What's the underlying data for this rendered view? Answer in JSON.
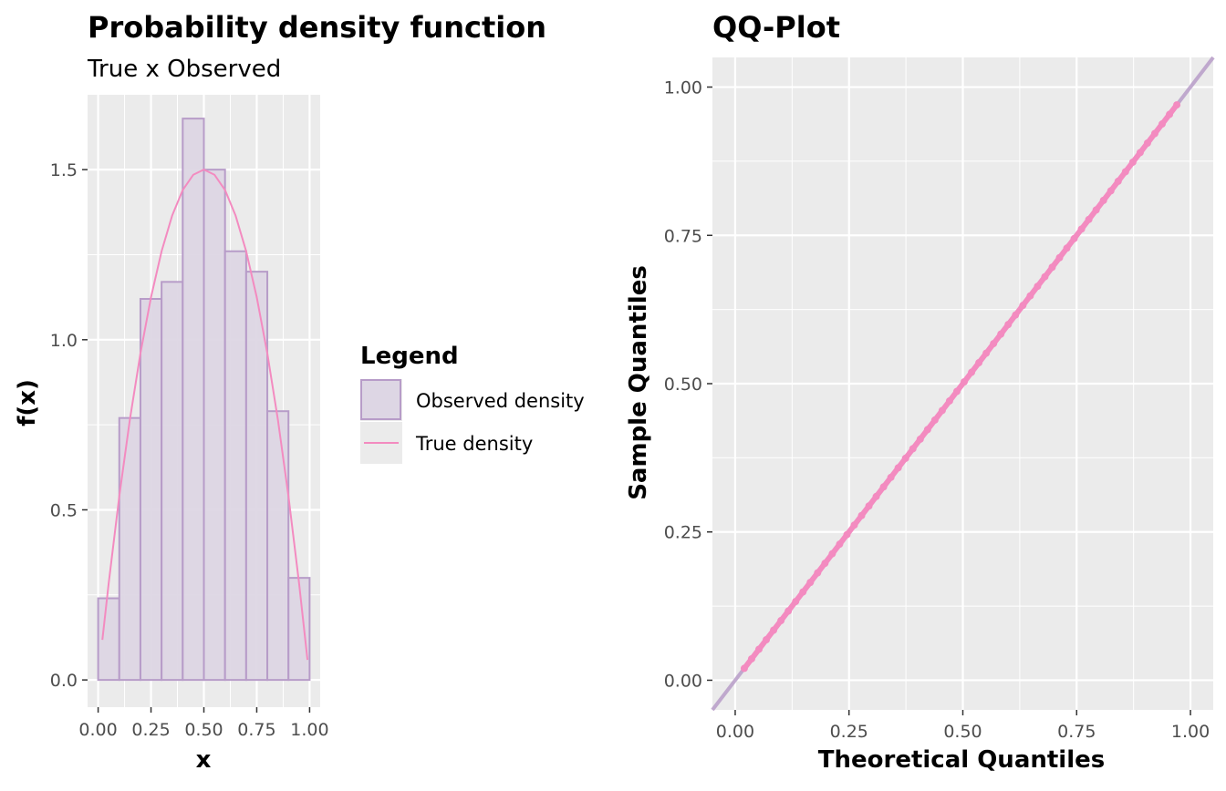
{
  "colors": {
    "panel_bg": "#EBEBEB",
    "grid": "#FFFFFF",
    "bar_fill": "#DDD6E4",
    "bar_stroke": "#B79CC8",
    "true_density": "#F38BC0",
    "qq_points": "#F38BC0",
    "qq_line": "#B79CC8"
  },
  "legend": {
    "title": "Legend",
    "items": [
      {
        "label": "Observed density",
        "icon": "filled-rect"
      },
      {
        "label": "True density",
        "icon": "line"
      }
    ]
  },
  "chart_data": [
    {
      "type": "bar",
      "title": "Probability density function",
      "subtitle": "True x Observed",
      "xlabel": "x",
      "ylabel": "f(x)",
      "xlim": [
        -0.05,
        1.05
      ],
      "ylim": [
        -0.08,
        1.72
      ],
      "xticks": [
        "0.00",
        "0.25",
        "0.50",
        "0.75",
        "1.00"
      ],
      "xtick_values": [
        0,
        0.25,
        0.5,
        0.75,
        1.0
      ],
      "yticks": [
        "0.0",
        "0.5",
        "1.0",
        "1.5"
      ],
      "ytick_values": [
        0,
        0.5,
        1.0,
        1.5
      ],
      "grid": true,
      "legend_position": "right",
      "bins": [
        {
          "x0": 0.0,
          "x1": 0.1,
          "density": 0.24
        },
        {
          "x0": 0.1,
          "x1": 0.2,
          "density": 0.77
        },
        {
          "x0": 0.2,
          "x1": 0.3,
          "density": 1.12
        },
        {
          "x0": 0.3,
          "x1": 0.4,
          "density": 1.17
        },
        {
          "x0": 0.4,
          "x1": 0.5,
          "density": 1.65
        },
        {
          "x0": 0.5,
          "x1": 0.6,
          "density": 1.5
        },
        {
          "x0": 0.6,
          "x1": 0.7,
          "density": 1.26
        },
        {
          "x0": 0.7,
          "x1": 0.8,
          "density": 1.2
        },
        {
          "x0": 0.8,
          "x1": 0.9,
          "density": 0.79
        },
        {
          "x0": 0.9,
          "x1": 1.0,
          "density": 0.3
        }
      ],
      "series": [
        {
          "type": "line",
          "x": [
            0.02,
            0.05,
            0.1,
            0.15,
            0.2,
            0.25,
            0.3,
            0.35,
            0.4,
            0.45,
            0.5,
            0.55,
            0.6,
            0.65,
            0.7,
            0.75,
            0.8,
            0.85,
            0.9,
            0.95,
            0.99
          ],
          "y": [
            0.118,
            0.285,
            0.54,
            0.765,
            0.96,
            1.125,
            1.26,
            1.365,
            1.44,
            1.485,
            1.5,
            1.485,
            1.44,
            1.365,
            1.26,
            1.125,
            0.96,
            0.765,
            0.54,
            0.285,
            0.059
          ]
        }
      ]
    },
    {
      "type": "scatter",
      "title": "QQ-Plot",
      "xlabel": "Theoretical Quantiles",
      "ylabel": "Sample Quantiles",
      "xlim": [
        -0.05,
        1.05
      ],
      "ylim": [
        -0.05,
        1.05
      ],
      "xticks": [
        "0.00",
        "0.25",
        "0.50",
        "0.75",
        "1.00"
      ],
      "xtick_values": [
        0,
        0.25,
        0.5,
        0.75,
        1.0
      ],
      "yticks": [
        "0.00",
        "0.25",
        "0.50",
        "0.75",
        "1.00"
      ],
      "ytick_values": [
        0,
        0.25,
        0.5,
        0.75,
        1.0
      ],
      "grid": true,
      "reference_line": {
        "x": [
          -0.05,
          1.05
        ],
        "y": [
          -0.05,
          1.05
        ]
      },
      "points_range": [
        0.02,
        0.97
      ],
      "points_count": 60
    }
  ]
}
